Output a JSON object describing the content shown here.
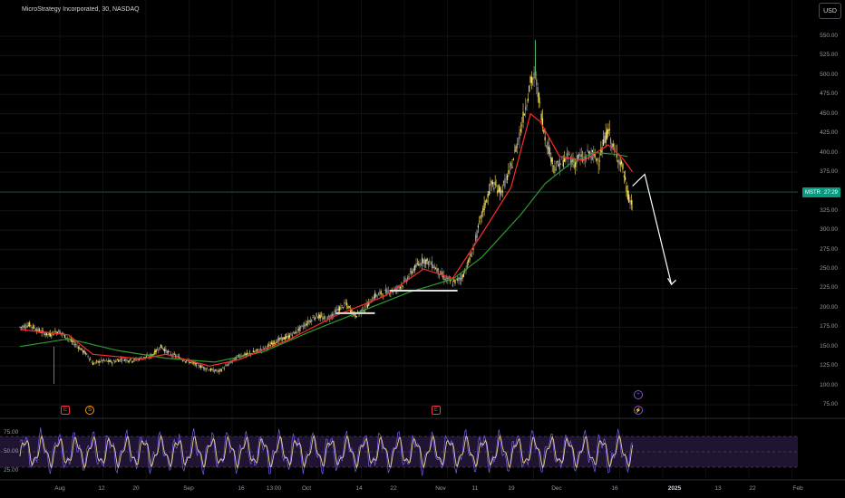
{
  "header": {
    "title": "MicroStrategy Incorporated, 30, NASDAQ",
    "currency_button": "USD"
  },
  "price_badge": {
    "ticker": "MSTR",
    "countdown": "27:29"
  },
  "colors": {
    "up_candle": "#ffe45c",
    "down_candle": "#a0a0a0",
    "ema_fast": "#ff2a2a",
    "sma_slow": "#2e9b2e",
    "rsi_line": "#e6d28a",
    "rsi_fill": "#1f1533",
    "support_line": "#e0e0e0",
    "arrow": "#ffffff",
    "badge": "#089981"
  },
  "axis": {
    "y_labels": [
      "550.00",
      "525.00",
      "500.00",
      "475.00",
      "450.00",
      "425.00",
      "400.00",
      "375.00",
      "350.00",
      "325.00",
      "300.00",
      "275.00",
      "250.00",
      "225.00",
      "200.00",
      "175.00",
      "150.00",
      "125.00",
      "100.00",
      "75.00"
    ],
    "x_labels": [
      {
        "text": "Aug",
        "bold": false
      },
      {
        "text": "12",
        "bold": false
      },
      {
        "text": "20",
        "bold": false
      },
      {
        "text": "Sep",
        "bold": false
      },
      {
        "text": "16",
        "bold": false
      },
      {
        "text": "13:00",
        "bold": false
      },
      {
        "text": "Oct",
        "bold": false
      },
      {
        "text": "14",
        "bold": false
      },
      {
        "text": "22",
        "bold": false
      },
      {
        "text": "Nov",
        "bold": false
      },
      {
        "text": "11",
        "bold": false
      },
      {
        "text": "19",
        "bold": false
      },
      {
        "text": "Dec",
        "bold": false
      },
      {
        "text": "16",
        "bold": false
      },
      {
        "text": "2025",
        "bold": true
      },
      {
        "text": "13",
        "bold": false
      },
      {
        "text": "22",
        "bold": false
      },
      {
        "text": "Feb",
        "bold": false
      }
    ],
    "rsi_labels": [
      "75.00",
      "50.00",
      "25.00"
    ]
  },
  "events": [
    {
      "icon": "earnings-icon",
      "glyph": "E",
      "color": "#f23645"
    },
    {
      "icon": "dividend-icon",
      "glyph": "S",
      "color": "#ff9800"
    },
    {
      "icon": "earnings-icon",
      "glyph": "E",
      "color": "#f23645"
    },
    {
      "icon": "split-icon",
      "glyph": "+",
      "color": "#7e57c2"
    },
    {
      "icon": "lightning-icon",
      "glyph": "⚡",
      "color": "#7e57c2"
    }
  ],
  "chart_data": {
    "type": "line",
    "title": "MicroStrategy Incorporated, 30, NASDAQ",
    "ylim": [
      60,
      560
    ],
    "last_price": 349,
    "price_path": [
      [
        0,
        175
      ],
      [
        4,
        178
      ],
      [
        8,
        170
      ],
      [
        12,
        165
      ],
      [
        16,
        170
      ],
      [
        20,
        160
      ],
      [
        24,
        150
      ],
      [
        28,
        138
      ],
      [
        30,
        128
      ],
      [
        34,
        132
      ],
      [
        38,
        130
      ],
      [
        42,
        134
      ],
      [
        46,
        132
      ],
      [
        50,
        135
      ],
      [
        54,
        138
      ],
      [
        58,
        150
      ],
      [
        62,
        140
      ],
      [
        66,
        135
      ],
      [
        70,
        130
      ],
      [
        74,
        125
      ],
      [
        78,
        120
      ],
      [
        82,
        118
      ],
      [
        86,
        128
      ],
      [
        90,
        138
      ],
      [
        94,
        140
      ],
      [
        98,
        145
      ],
      [
        102,
        150
      ],
      [
        106,
        158
      ],
      [
        110,
        162
      ],
      [
        114,
        170
      ],
      [
        118,
        180
      ],
      [
        122,
        190
      ],
      [
        126,
        185
      ],
      [
        130,
        195
      ],
      [
        134,
        205
      ],
      [
        138,
        190
      ],
      [
        142,
        200
      ],
      [
        146,
        215
      ],
      [
        150,
        220
      ],
      [
        154,
        222
      ],
      [
        158,
        232
      ],
      [
        162,
        250
      ],
      [
        166,
        262
      ],
      [
        170,
        255
      ],
      [
        174,
        240
      ],
      [
        178,
        232
      ],
      [
        182,
        240
      ],
      [
        186,
        270
      ],
      [
        190,
        320
      ],
      [
        194,
        360
      ],
      [
        198,
        350
      ],
      [
        202,
        380
      ],
      [
        206,
        430
      ],
      [
        210,
        490
      ],
      [
        212,
        500
      ],
      [
        214,
        460
      ],
      [
        216,
        420
      ],
      [
        218,
        400
      ],
      [
        220,
        380
      ],
      [
        222,
        385
      ],
      [
        224,
        390
      ],
      [
        226,
        395
      ],
      [
        228,
        385
      ],
      [
        230,
        395
      ],
      [
        232,
        390
      ],
      [
        234,
        400
      ],
      [
        236,
        395
      ],
      [
        238,
        390
      ],
      [
        240,
        410
      ],
      [
        242,
        430
      ],
      [
        244,
        405
      ],
      [
        246,
        395
      ],
      [
        248,
        380
      ],
      [
        250,
        345
      ],
      [
        251,
        338
      ],
      [
        252,
        332
      ]
    ],
    "ema_fast": [
      [
        0,
        172
      ],
      [
        20,
        165
      ],
      [
        30,
        140
      ],
      [
        50,
        134
      ],
      [
        60,
        140
      ],
      [
        78,
        125
      ],
      [
        90,
        133
      ],
      [
        110,
        158
      ],
      [
        130,
        190
      ],
      [
        150,
        215
      ],
      [
        166,
        250
      ],
      [
        178,
        238
      ],
      [
        190,
        295
      ],
      [
        202,
        355
      ],
      [
        210,
        450
      ],
      [
        214,
        440
      ],
      [
        222,
        395
      ],
      [
        232,
        390
      ],
      [
        242,
        410
      ],
      [
        248,
        392
      ],
      [
        252,
        375
      ]
    ],
    "sma_slow": [
      [
        0,
        150
      ],
      [
        20,
        160
      ],
      [
        40,
        145
      ],
      [
        60,
        135
      ],
      [
        80,
        130
      ],
      [
        100,
        143
      ],
      [
        120,
        170
      ],
      [
        140,
        195
      ],
      [
        160,
        220
      ],
      [
        178,
        237
      ],
      [
        190,
        265
      ],
      [
        206,
        320
      ],
      [
        216,
        360
      ],
      [
        226,
        385
      ],
      [
        236,
        400
      ],
      [
        244,
        398
      ],
      [
        250,
        395
      ]
    ],
    "support_lines": [
      {
        "x0": 130,
        "x1": 146,
        "y": 193
      },
      {
        "x0": 152,
        "x1": 180,
        "y": 222
      }
    ],
    "projection": [
      [
        252,
        357
      ],
      [
        257,
        372
      ],
      [
        268,
        230
      ]
    ],
    "rsi": {
      "ylim": [
        15,
        90
      ],
      "upper_band": 70,
      "lower_band": 30,
      "mid": 50
    }
  }
}
